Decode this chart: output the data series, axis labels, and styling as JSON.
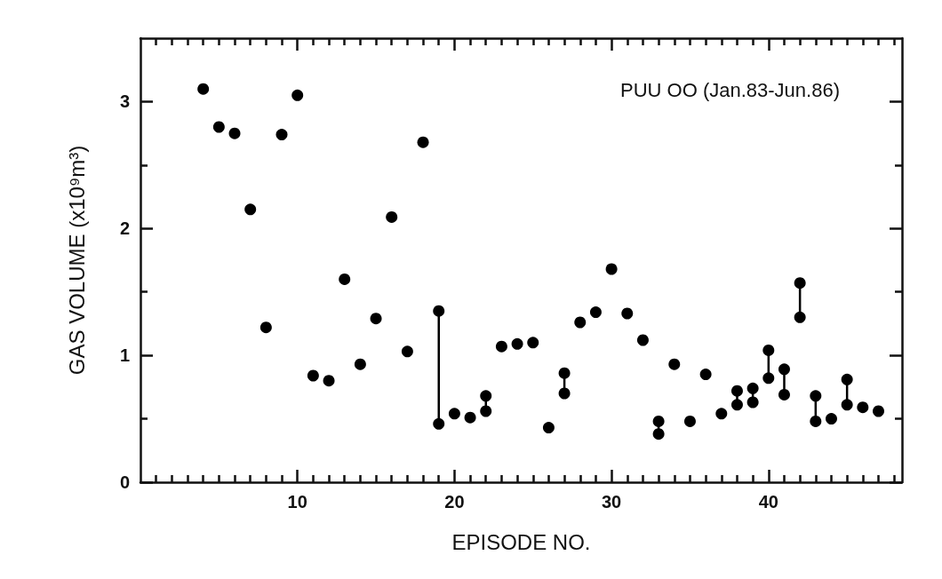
{
  "chart_data": {
    "type": "scatter",
    "xlabel": "EPISODE NO.",
    "ylabel": "GAS VOLUME (x10⁹m³)",
    "annotations": [
      "PUU OO (Jan.83-Jun.86)"
    ],
    "marker": "circle",
    "series": [
      {
        "x": [
          4,
          5,
          6,
          7,
          8,
          9,
          10,
          11,
          12,
          13,
          14,
          15,
          16,
          17,
          18,
          20,
          21,
          23,
          24,
          25,
          26,
          28,
          29,
          30,
          31,
          32,
          34,
          35,
          36,
          37,
          44,
          46,
          47
        ],
        "values": [
          3.1,
          2.8,
          2.75,
          2.15,
          1.22,
          2.74,
          3.05,
          0.84,
          0.8,
          1.6,
          0.93,
          1.29,
          2.09,
          1.03,
          2.68,
          0.54,
          0.51,
          1.07,
          1.09,
          1.1,
          0.43,
          1.26,
          1.34,
          1.68,
          1.33,
          1.12,
          0.93,
          0.48,
          0.85,
          0.54,
          0.5,
          0.59,
          0.56
        ],
        "color": "#000000"
      },
      {
        "type": "line",
        "x": [
          19,
          19
        ],
        "values": [
          0.46,
          1.35
        ],
        "color": "#000000"
      },
      {
        "type": "line",
        "x": [
          22,
          22
        ],
        "values": [
          0.56,
          0.68
        ],
        "color": "#000000"
      },
      {
        "type": "line",
        "x": [
          27,
          27
        ],
        "values": [
          0.7,
          0.86
        ],
        "color": "#000000"
      },
      {
        "type": "line",
        "x": [
          33,
          33
        ],
        "values": [
          0.38,
          0.48
        ],
        "color": "#000000"
      },
      {
        "type": "line",
        "x": [
          38,
          38
        ],
        "values": [
          0.61,
          0.72
        ],
        "color": "#000000"
      },
      {
        "type": "line",
        "x": [
          39,
          39
        ],
        "values": [
          0.63,
          0.74
        ],
        "color": "#000000"
      },
      {
        "type": "line",
        "x": [
          40,
          40
        ],
        "values": [
          0.82,
          1.04
        ],
        "color": "#000000"
      },
      {
        "type": "line",
        "x": [
          41,
          41
        ],
        "values": [
          0.69,
          0.89
        ],
        "color": "#000000"
      },
      {
        "type": "line",
        "x": [
          42,
          42
        ],
        "values": [
          1.3,
          1.57
        ],
        "color": "#000000"
      },
      {
        "type": "line",
        "x": [
          43,
          43
        ],
        "values": [
          0.48,
          0.68
        ],
        "color": "#000000"
      },
      {
        "type": "line",
        "x": [
          45,
          45
        ],
        "values": [
          0.61,
          0.81
        ],
        "color": "#000000"
      }
    ],
    "xlim": [
      0,
      48.5
    ],
    "xticks": [
      {
        "value": 1,
        "label": null
      },
      {
        "value": 2,
        "label": null
      },
      {
        "value": 3,
        "label": null
      },
      {
        "value": 4,
        "label": null
      },
      {
        "value": 5,
        "label": null
      },
      {
        "value": 6,
        "label": null
      },
      {
        "value": 7,
        "label": null
      },
      {
        "value": 8,
        "label": null
      },
      {
        "value": 9,
        "label": null
      },
      10,
      {
        "value": 11,
        "label": null
      },
      {
        "value": 12,
        "label": null
      },
      {
        "value": 13,
        "label": null
      },
      {
        "value": 14,
        "label": null
      },
      {
        "value": 15,
        "label": null
      },
      {
        "value": 16,
        "label": null
      },
      {
        "value": 17,
        "label": null
      },
      {
        "value": 18,
        "label": null
      },
      {
        "value": 19,
        "label": null
      },
      20,
      {
        "value": 21,
        "label": null
      },
      {
        "value": 22,
        "label": null
      },
      {
        "value": 23,
        "label": null
      },
      {
        "value": 24,
        "label": null
      },
      {
        "value": 25,
        "label": null
      },
      {
        "value": 26,
        "label": null
      },
      {
        "value": 27,
        "label": null
      },
      {
        "value": 28,
        "label": null
      },
      {
        "value": 29,
        "label": null
      },
      30,
      {
        "value": 31,
        "label": null
      },
      {
        "value": 32,
        "label": null
      },
      {
        "value": 33,
        "label": null
      },
      {
        "value": 34,
        "label": null
      },
      {
        "value": 35,
        "label": null
      },
      {
        "value": 36,
        "label": null
      },
      {
        "value": 37,
        "label": null
      },
      {
        "value": 38,
        "label": null
      },
      {
        "value": 39,
        "label": null
      },
      40,
      {
        "value": 41,
        "label": null
      },
      {
        "value": 42,
        "label": null
      },
      {
        "value": 43,
        "label": null
      },
      {
        "value": 44,
        "label": null
      },
      {
        "value": 45,
        "label": null
      },
      {
        "value": 46,
        "label": null
      },
      {
        "value": 47,
        "label": null
      },
      {
        "value": 48,
        "label": null
      }
    ],
    "ylim": [
      0,
      3.5
    ],
    "yticks": [
      0,
      {
        "value": 0.5,
        "label": null
      },
      1,
      {
        "value": 1.5,
        "label": null
      },
      2,
      {
        "value": 2.5,
        "label": null
      },
      3
    ],
    "grid": false
  }
}
